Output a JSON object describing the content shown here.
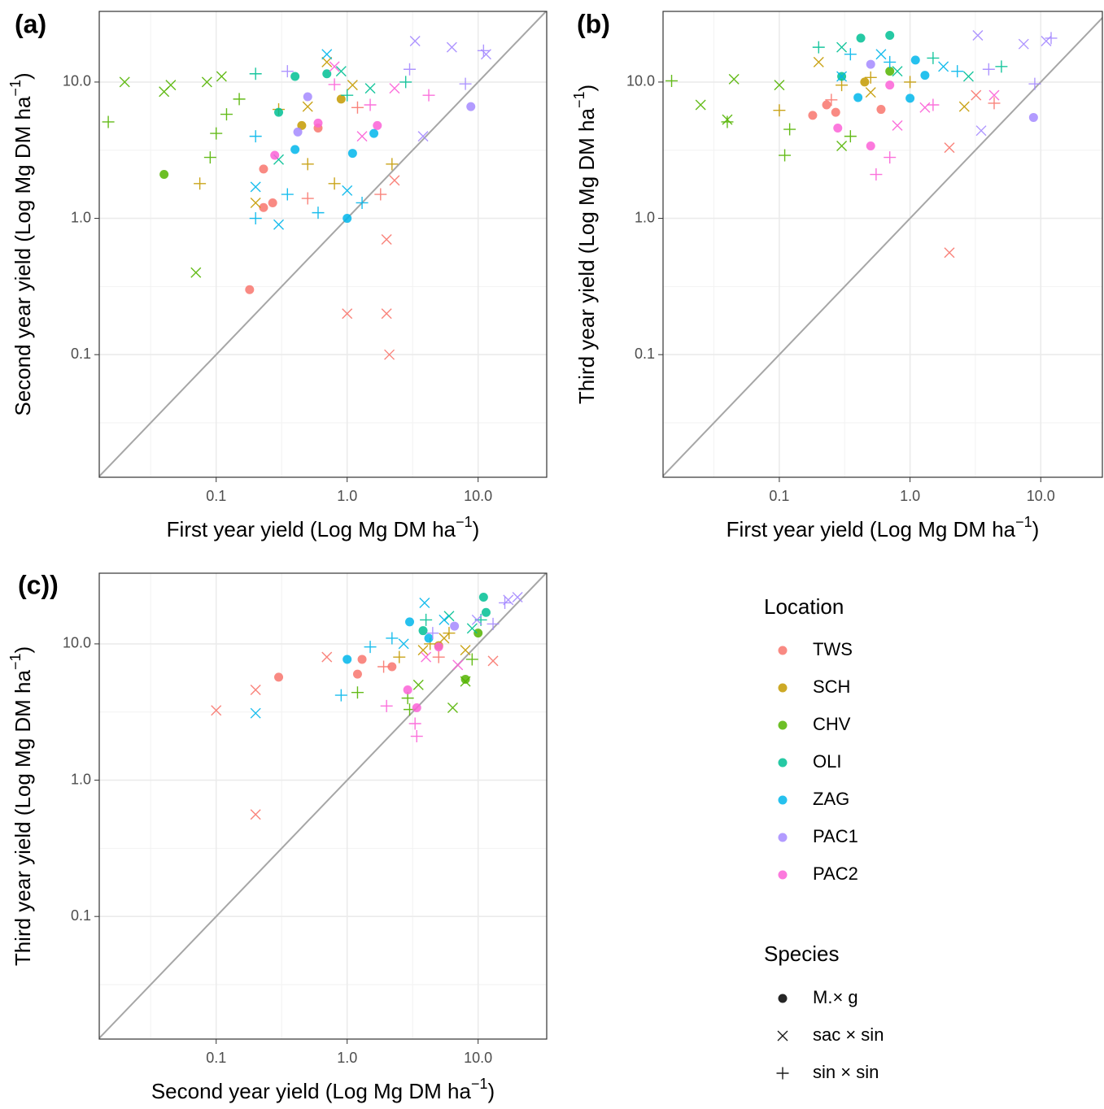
{
  "chart_data": [
    {
      "type": "scatter",
      "title": "(a)",
      "log_x": true,
      "log_y": true,
      "grid": true,
      "diagonal": true,
      "x_label": {
        "text": "First year yield (Log Mg DM ha",
        "sup": "−1",
        "end": ")"
      },
      "y_label": {
        "text": "Second year yield (Log Mg DM ha",
        "sup": "−1",
        "end": ")"
      },
      "xlim": [
        0.0128,
        33.4
      ],
      "ylim": [
        0.0126,
        33
      ],
      "xticks": [
        0.1,
        {
          "value": 1,
          "label": "1.0"
        },
        {
          "value": 10,
          "label": "10.0"
        }
      ],
      "yticks": [
        0.1,
        {
          "value": 1,
          "label": "1.0"
        },
        {
          "value": 10,
          "label": "10.0"
        }
      ],
      "xminor": [
        0.0316,
        0.316,
        3.16
      ],
      "yminor": [
        0.0316,
        0.316,
        3.16
      ],
      "series": [
        {
          "location": "TWS",
          "species": "M.× g",
          "x": [
            0.18,
            0.23,
            0.27,
            0.23,
            0.6
          ],
          "values": [
            0.3,
            1.2,
            1.3,
            2.3,
            4.6
          ]
        },
        {
          "location": "TWS",
          "species": "sac × sin",
          "x": [
            1.0,
            2.0,
            2.1,
            2.0,
            2.3
          ],
          "values": [
            0.2,
            0.2,
            0.1,
            0.7,
            1.9
          ]
        },
        {
          "location": "TWS",
          "species": "sin × sin",
          "x": [
            0.5,
            1.8,
            1.2
          ],
          "values": [
            1.4,
            1.5,
            6.5
          ]
        },
        {
          "location": "SCH",
          "species": "M.× g",
          "x": [
            0.45,
            0.9
          ],
          "values": [
            4.8,
            7.5
          ]
        },
        {
          "location": "SCH",
          "species": "sac × sin",
          "x": [
            0.2,
            0.7,
            0.5,
            1.1
          ],
          "values": [
            1.3,
            14,
            6.6,
            9.5
          ]
        },
        {
          "location": "SCH",
          "species": "sin × sin",
          "x": [
            0.075,
            0.8,
            0.5,
            2.2,
            0.3
          ],
          "values": [
            1.8,
            1.8,
            2.5,
            2.5,
            6.3
          ]
        },
        {
          "location": "CHV",
          "species": "M.× g",
          "x": [
            0.04
          ],
          "values": [
            2.1
          ]
        },
        {
          "location": "CHV",
          "species": "sac × sin",
          "x": [
            0.02,
            0.04,
            0.045,
            0.07,
            0.085,
            0.11
          ],
          "values": [
            10,
            8.5,
            9.5,
            0.4,
            10,
            11
          ]
        },
        {
          "location": "CHV",
          "species": "sin × sin",
          "x": [
            0.015,
            0.1,
            0.12,
            0.09,
            0.15
          ],
          "values": [
            5.1,
            4.2,
            5.8,
            2.8,
            7.5
          ]
        },
        {
          "location": "OLI",
          "species": "M.× g",
          "x": [
            0.3,
            0.4,
            0.7
          ],
          "values": [
            6,
            11,
            11.5
          ]
        },
        {
          "location": "OLI",
          "species": "sac × sin",
          "x": [
            0.3,
            0.9,
            1.5
          ],
          "values": [
            2.7,
            12,
            9
          ]
        },
        {
          "location": "OLI",
          "species": "sin × sin",
          "x": [
            0.2,
            1.0,
            2.8
          ],
          "values": [
            11.5,
            8,
            10
          ]
        },
        {
          "location": "ZAG",
          "species": "M.× g",
          "x": [
            0.4,
            1.0,
            1.1,
            1.6
          ],
          "values": [
            3.2,
            1.0,
            3,
            4.2
          ]
        },
        {
          "location": "ZAG",
          "species": "sac × sin",
          "x": [
            0.3,
            0.2,
            1.0,
            0.7
          ],
          "values": [
            0.9,
            1.7,
            1.6,
            16
          ]
        },
        {
          "location": "ZAG",
          "species": "sin × sin",
          "x": [
            0.2,
            0.6,
            1.3,
            0.35,
            0.2
          ],
          "values": [
            1.0,
            1.1,
            1.3,
            1.5,
            4
          ]
        },
        {
          "location": "PAC1",
          "species": "M.× g",
          "x": [
            0.42,
            0.5,
            8.8
          ],
          "values": [
            4.3,
            7.8,
            6.6
          ]
        },
        {
          "location": "PAC1",
          "species": "sac × sin",
          "x": [
            3.3,
            6.3,
            11.5,
            3.8
          ],
          "values": [
            20,
            18,
            16,
            4
          ]
        },
        {
          "location": "PAC1",
          "species": "sin × sin",
          "x": [
            11,
            8,
            3,
            0.35
          ],
          "values": [
            17,
            9.7,
            12.4,
            12
          ]
        },
        {
          "location": "PAC2",
          "species": "M.× g",
          "x": [
            0.28,
            0.6,
            1.7
          ],
          "values": [
            2.9,
            5,
            4.8
          ]
        },
        {
          "location": "PAC2",
          "species": "sac × sin",
          "x": [
            1.3,
            0.8,
            2.3
          ],
          "values": [
            4,
            13,
            9
          ]
        },
        {
          "location": "PAC2",
          "species": "sin × sin",
          "x": [
            0.8,
            1.5,
            4.2
          ],
          "values": [
            9.6,
            6.8,
            8
          ]
        }
      ]
    },
    {
      "type": "scatter",
      "title": "(b)",
      "log_x": true,
      "log_y": true,
      "grid": true,
      "diagonal": true,
      "x_label": {
        "text": "First year yield (Log Mg DM ha",
        "sup": "−1",
        "end": ")"
      },
      "y_label": {
        "text": "Third year yield (Log Mg DM ha",
        "sup": "−1",
        "end": ")"
      },
      "xlim": [
        0.0129,
        29.6
      ],
      "ylim": [
        0.0126,
        33
      ],
      "xticks": [
        0.1,
        {
          "value": 1,
          "label": "1.0"
        },
        {
          "value": 10,
          "label": "10.0"
        }
      ],
      "yticks": [
        0.1,
        {
          "value": 1,
          "label": "1.0"
        },
        {
          "value": 10,
          "label": "10.0"
        }
      ],
      "xminor": [
        0.0316,
        0.316,
        3.16
      ],
      "yminor": [
        0.0316,
        0.316,
        3.16
      ],
      "series": [
        {
          "location": "TWS",
          "species": "M.× g",
          "x": [
            0.18,
            0.23,
            0.27,
            0.6
          ],
          "values": [
            5.7,
            6.8,
            6,
            6.3
          ]
        },
        {
          "location": "TWS",
          "species": "sac × sin",
          "x": [
            2.0,
            2.0,
            3.2
          ],
          "values": [
            0.56,
            3.3,
            8
          ]
        },
        {
          "location": "TWS",
          "species": "sin × sin",
          "x": [
            0.25,
            4.4
          ],
          "values": [
            7.4,
            7
          ]
        },
        {
          "location": "SCH",
          "species": "M.× g",
          "x": [
            0.45
          ],
          "values": [
            10
          ]
        },
        {
          "location": "SCH",
          "species": "sac × sin",
          "x": [
            0.2,
            0.5,
            2.6
          ],
          "values": [
            14,
            8.4,
            6.6
          ]
        },
        {
          "location": "SCH",
          "species": "sin × sin",
          "x": [
            0.1,
            0.3,
            0.5,
            1.0
          ],
          "values": [
            6.2,
            9.5,
            10.8,
            10
          ]
        },
        {
          "location": "CHV",
          "species": "M.× g",
          "x": [
            0.7
          ],
          "values": [
            12
          ]
        },
        {
          "location": "CHV",
          "species": "sac × sin",
          "x": [
            0.025,
            0.04,
            0.045,
            0.1,
            0.3
          ],
          "values": [
            6.8,
            5.3,
            10.5,
            9.5,
            3.4
          ]
        },
        {
          "location": "CHV",
          "species": "sin × sin",
          "x": [
            0.015,
            0.04,
            0.11,
            0.12,
            0.35
          ],
          "values": [
            10.2,
            5.1,
            2.9,
            4.5,
            4
          ]
        },
        {
          "location": "OLI",
          "species": "M.× g",
          "x": [
            0.42,
            0.7,
            0.3
          ],
          "values": [
            21,
            22,
            11
          ]
        },
        {
          "location": "OLI",
          "species": "sac × sin",
          "x": [
            0.3,
            0.8,
            2.8
          ],
          "values": [
            18,
            12,
            11
          ]
        },
        {
          "location": "OLI",
          "species": "sin × sin",
          "x": [
            0.2,
            1.5,
            5
          ],
          "values": [
            18,
            15,
            13
          ]
        },
        {
          "location": "ZAG",
          "species": "M.× g",
          "x": [
            1.0,
            1.1,
            1.3,
            0.4
          ],
          "values": [
            7.6,
            14.5,
            11.2,
            7.7
          ]
        },
        {
          "location": "ZAG",
          "species": "sac × sin",
          "x": [
            0.3,
            0.6,
            1.8
          ],
          "values": [
            11,
            16,
            13
          ]
        },
        {
          "location": "ZAG",
          "species": "sin × sin",
          "x": [
            0.35,
            0.7,
            2.3
          ],
          "values": [
            16,
            14,
            12
          ]
        },
        {
          "location": "PAC1",
          "species": "M.× g",
          "x": [
            0.5,
            8.8
          ],
          "values": [
            13.5,
            5.5
          ]
        },
        {
          "location": "PAC1",
          "species": "sac × sin",
          "x": [
            3.3,
            7.4,
            11,
            3.5
          ],
          "values": [
            22,
            19,
            20,
            4.4
          ]
        },
        {
          "location": "PAC1",
          "species": "sin × sin",
          "x": [
            12,
            9,
            4
          ],
          "values": [
            21,
            9.7,
            12.4
          ]
        },
        {
          "location": "PAC2",
          "species": "M.× g",
          "x": [
            0.28,
            0.5,
            0.7
          ],
          "values": [
            4.6,
            3.4,
            9.5
          ]
        },
        {
          "location": "PAC2",
          "species": "sac × sin",
          "x": [
            0.8,
            1.3,
            4.4
          ],
          "values": [
            4.8,
            6.5,
            8
          ]
        },
        {
          "location": "PAC2",
          "species": "sin × sin",
          "x": [
            0.55,
            0.7,
            1.5
          ],
          "values": [
            2.1,
            2.8,
            6.8
          ]
        }
      ]
    },
    {
      "type": "scatter",
      "title": "(c))",
      "log_x": true,
      "log_y": true,
      "grid": true,
      "diagonal": true,
      "x_label": {
        "text": "Second year yield (Log Mg DM ha",
        "sup": "−1",
        "end": ")"
      },
      "y_label": {
        "text": "Third year yield (Log Mg DM ha",
        "sup": "−1",
        "end": ")"
      },
      "xlim": [
        0.0128,
        33.4
      ],
      "ylim": [
        0.0126,
        33
      ],
      "xticks": [
        0.1,
        {
          "value": 1,
          "label": "1.0"
        },
        {
          "value": 10,
          "label": "10.0"
        }
      ],
      "yticks": [
        0.1,
        {
          "value": 1,
          "label": "1.0"
        },
        {
          "value": 10,
          "label": "10.0"
        }
      ],
      "xminor": [
        0.0316,
        0.316,
        3.16
      ],
      "yminor": [
        0.0316,
        0.316,
        3.16
      ],
      "series": [
        {
          "location": "TWS",
          "species": "M.× g",
          "x": [
            0.3,
            1.3,
            2.2,
            1.2
          ],
          "values": [
            5.7,
            7.7,
            6.8,
            6.0
          ]
        },
        {
          "location": "TWS",
          "species": "sac × sin",
          "x": [
            0.1,
            0.2,
            0.2,
            0.7,
            13
          ],
          "values": [
            3.25,
            4.6,
            0.56,
            8,
            7.5
          ]
        },
        {
          "location": "TWS",
          "species": "sin × sin",
          "x": [
            1.9,
            5
          ],
          "values": [
            6.8,
            8
          ]
        },
        {
          "location": "SCH",
          "species": "M.× g",
          "x": [
            5
          ],
          "values": [
            9.7
          ]
        },
        {
          "location": "SCH",
          "species": "sac × sin",
          "x": [
            3.8,
            5.5,
            8
          ],
          "values": [
            9,
            11,
            9
          ]
        },
        {
          "location": "SCH",
          "species": "sin × sin",
          "x": [
            2.5,
            4.3,
            6
          ],
          "values": [
            8,
            10,
            12
          ]
        },
        {
          "location": "CHV",
          "species": "M.× g",
          "x": [
            8,
            10
          ],
          "values": [
            5.5,
            12
          ]
        },
        {
          "location": "CHV",
          "species": "sac × sin",
          "x": [
            6.4,
            3.5,
            8
          ],
          "values": [
            3.4,
            5,
            5.3
          ]
        },
        {
          "location": "CHV",
          "species": "sin × sin",
          "x": [
            1.2,
            3,
            2.9,
            9
          ],
          "values": [
            4.4,
            3.3,
            4,
            7.7
          ]
        },
        {
          "location": "OLI",
          "species": "M.× g",
          "x": [
            3.8,
            11,
            11.5
          ],
          "values": [
            12.5,
            22,
            17
          ]
        },
        {
          "location": "OLI",
          "species": "sac × sin",
          "x": [
            6,
            9
          ],
          "values": [
            16,
            13
          ]
        },
        {
          "location": "OLI",
          "species": "sin × sin",
          "x": [
            4,
            10.5
          ],
          "values": [
            15,
            15
          ]
        },
        {
          "location": "ZAG",
          "species": "M.× g",
          "x": [
            1,
            3,
            4.2
          ],
          "values": [
            7.7,
            14.5,
            11
          ]
        },
        {
          "location": "ZAG",
          "species": "sac × sin",
          "x": [
            0.2,
            2.7,
            5.5,
            3.9
          ],
          "values": [
            3.1,
            10,
            15,
            20
          ]
        },
        {
          "location": "ZAG",
          "species": "sin × sin",
          "x": [
            0.9,
            1.5,
            2.2
          ],
          "values": [
            4.2,
            9.5,
            11
          ]
        },
        {
          "location": "PAC1",
          "species": "M.× g",
          "x": [
            6.6
          ],
          "values": [
            13.5
          ]
        },
        {
          "location": "PAC1",
          "species": "sac × sin",
          "x": [
            17,
            20,
            9.8
          ],
          "values": [
            21,
            22,
            15
          ]
        },
        {
          "location": "PAC1",
          "species": "sin × sin",
          "x": [
            16,
            13,
            4.5
          ],
          "values": [
            20,
            14,
            12
          ]
        },
        {
          "location": "PAC2",
          "species": "M.× g",
          "x": [
            2.9,
            3.4,
            5
          ],
          "values": [
            4.6,
            3.4,
            9.5
          ]
        },
        {
          "location": "PAC2",
          "species": "sac × sin",
          "x": [
            4,
            7
          ],
          "values": [
            8,
            7
          ]
        },
        {
          "location": "PAC2",
          "species": "sin × sin",
          "x": [
            2,
            3.4,
            3.3
          ],
          "values": [
            3.5,
            2.1,
            2.6
          ]
        }
      ]
    }
  ],
  "legend": {
    "location_title": "Location",
    "locations": [
      {
        "name": "TWS",
        "color": "#F8766D"
      },
      {
        "name": "SCH",
        "color": "#C49A00"
      },
      {
        "name": "CHV",
        "color": "#53B400"
      },
      {
        "name": "OLI",
        "color": "#00C094"
      },
      {
        "name": "ZAG",
        "color": "#00B6EB"
      },
      {
        "name": "PAC1",
        "color": "#A58AFF"
      },
      {
        "name": "PAC2",
        "color": "#FB61D7"
      }
    ],
    "species_title": "Species",
    "species": [
      {
        "name": "M.× g",
        "marker": "circle"
      },
      {
        "name": "sac × sin",
        "marker": "cross"
      },
      {
        "name": "sin × sin",
        "marker": "plus"
      }
    ]
  }
}
